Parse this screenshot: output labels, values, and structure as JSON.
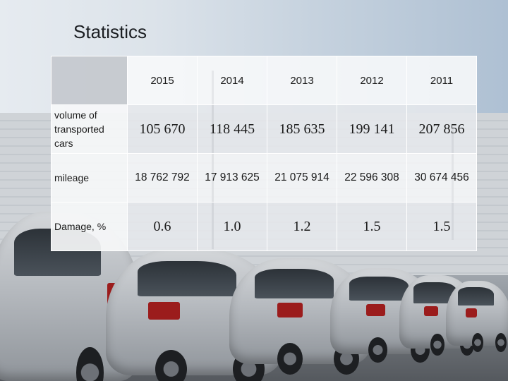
{
  "title": "Statistics",
  "table": {
    "years": [
      "2015",
      "2014",
      "2013",
      "2012",
      "2011"
    ],
    "rows": [
      {
        "label": "volume of transported cars",
        "values": [
          "105 670",
          "118 445",
          "185 635",
          "199 141",
          "207 856"
        ]
      },
      {
        "label": "mileage",
        "values": [
          "18 762 792",
          "17 913 625",
          "21 075 914",
          "22 596 308",
          "30 674 456"
        ]
      },
      {
        "label": "Damage, %",
        "values": [
          "0.6",
          "1.0",
          "1.2",
          "1.5",
          "1.5"
        ]
      }
    ]
  },
  "colors": {
    "title_text": "#1b1e22",
    "table_border": "#ffffff"
  }
}
